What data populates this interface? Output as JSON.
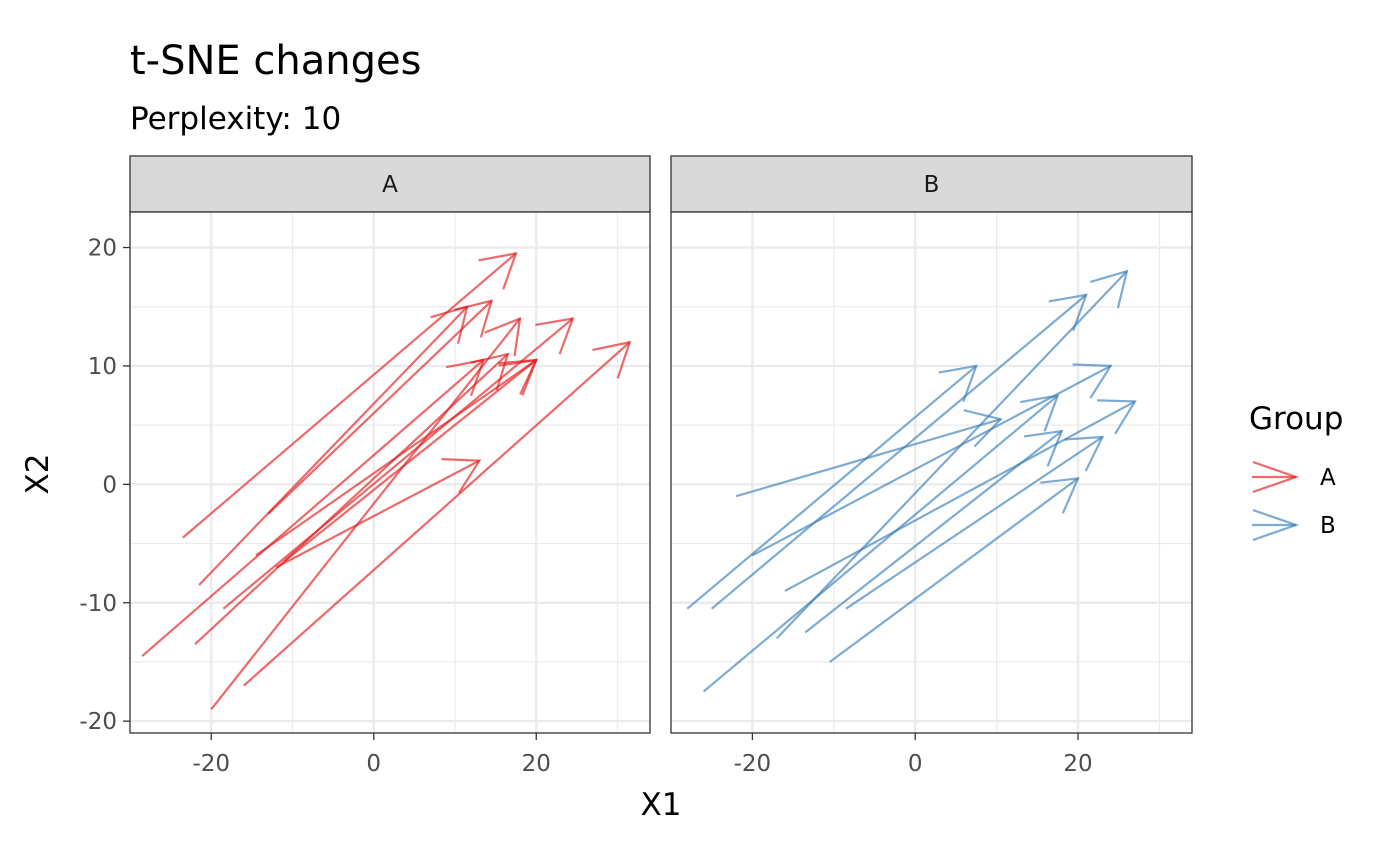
{
  "chart_data": {
    "type": "arrow-segments",
    "title": "t-SNE changes",
    "subtitle": "Perplexity: 10",
    "xlabel": "X1",
    "ylabel": "X2",
    "xlim": [
      -30,
      34
    ],
    "ylim": [
      -21,
      23
    ],
    "x_ticks": [
      -20,
      0,
      20
    ],
    "y_ticks": [
      -20,
      -10,
      0,
      10,
      20
    ],
    "x_tick_labels": [
      "-20",
      "0",
      "20"
    ],
    "y_tick_labels": [
      "-20",
      "-10",
      "0",
      "10",
      "20"
    ],
    "grid": true,
    "legend": {
      "title": "Group",
      "position": "right",
      "entries": [
        {
          "label": "A",
          "color": "#E41A1C"
        },
        {
          "label": "B",
          "color": "#377EB8"
        }
      ]
    },
    "panels": [
      {
        "name": "A",
        "strip_label": "A",
        "color": "#E41A1C",
        "segments": [
          {
            "x0": -23.5,
            "y0": -4.5,
            "x1": 17.5,
            "y1": 19.5
          },
          {
            "x0": -21.5,
            "y0": -8.5,
            "x1": 11.5,
            "y1": 15.0
          },
          {
            "x0": -13,
            "y0": -2.5,
            "x1": 14.5,
            "y1": 15.5
          },
          {
            "x0": -28.5,
            "y0": -14.5,
            "x1": 13.5,
            "y1": 10.5
          },
          {
            "x0": -20,
            "y0": -19.0,
            "x1": 18,
            "y1": 14.0
          },
          {
            "x0": -22,
            "y0": -13.5,
            "x1": 16.5,
            "y1": 11.0
          },
          {
            "x0": -16,
            "y0": -17.0,
            "x1": 31.5,
            "y1": 12.0
          },
          {
            "x0": -18.5,
            "y0": -10.5,
            "x1": 24.5,
            "y1": 14.0
          },
          {
            "x0": -14.5,
            "y0": -6.0,
            "x1": 20,
            "y1": 10.5
          },
          {
            "x0": -12,
            "y0": -7.0,
            "x1": 13,
            "y1": 2.0
          },
          {
            "x0": -11,
            "y0": -6.5,
            "x1": 20,
            "y1": 10.5
          }
        ]
      },
      {
        "name": "B",
        "strip_label": "B",
        "color": "#377EB8",
        "segments": [
          {
            "x0": -26,
            "y0": -17.5,
            "x1": 17.5,
            "y1": 7.5
          },
          {
            "x0": -28,
            "y0": -10.5,
            "x1": 7.5,
            "y1": 10.0
          },
          {
            "x0": -25,
            "y0": -10.5,
            "x1": 21,
            "y1": 16.0
          },
          {
            "x0": -22,
            "y0": -1.0,
            "x1": 10.5,
            "y1": 5.5
          },
          {
            "x0": -20,
            "y0": -6.0,
            "x1": 24,
            "y1": 10.0
          },
          {
            "x0": -17,
            "y0": -13.0,
            "x1": 26,
            "y1": 18.0
          },
          {
            "x0": -16,
            "y0": -9.0,
            "x1": 27,
            "y1": 7.0
          },
          {
            "x0": -13.5,
            "y0": -12.5,
            "x1": 18,
            "y1": 4.5
          },
          {
            "x0": -10.5,
            "y0": -15.0,
            "x1": 20,
            "y1": 0.5
          },
          {
            "x0": -8.5,
            "y0": -10.5,
            "x1": 23,
            "y1": 4.0
          }
        ]
      }
    ]
  }
}
